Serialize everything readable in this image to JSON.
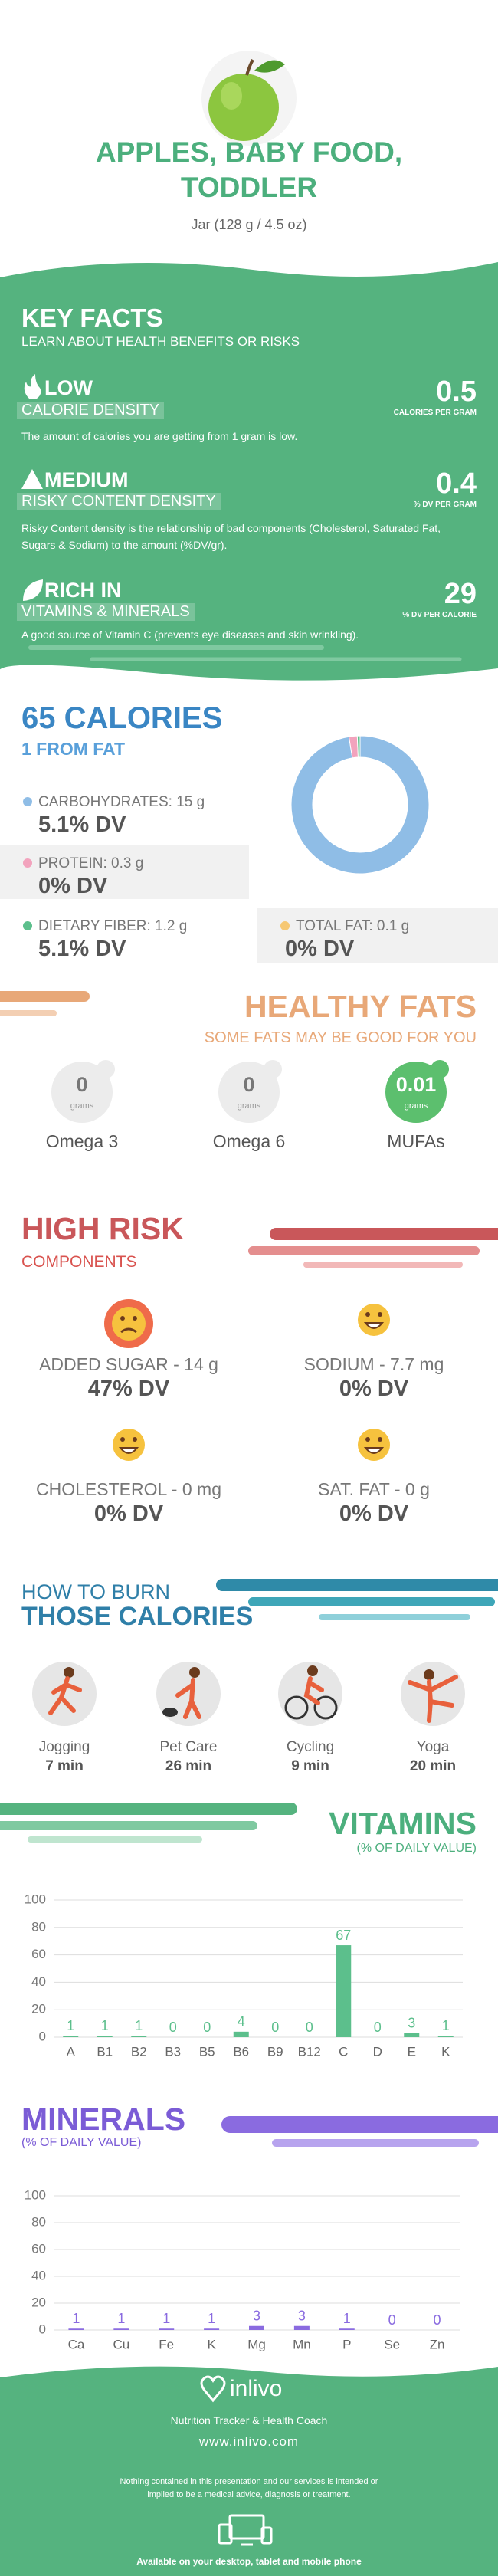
{
  "header": {
    "title": "APPLES, BABY FOOD, TODDLER",
    "subtitle": "Jar (128 g / 4.5 oz)"
  },
  "key_facts": {
    "title": "KEY FACTS",
    "subtitle": "LEARN ABOUT HEALTH BENEFITS OR RISKS",
    "items": [
      {
        "level": "LOW",
        "name": "CALORIE DENSITY",
        "value": 0.5,
        "unit": "CALORIES PER GRAM",
        "description": "The amount of calories you are getting from 1 gram is low."
      },
      {
        "level": "MEDIUM",
        "name": "RISKY CONTENT DENSITY",
        "value": 0.4,
        "unit": "% DV PER GRAM",
        "description": "Risky Content density is the relationship of bad components (Cholesterol, Saturated Fat, Sugars & Sodium) to the amount (%DV/gr)."
      },
      {
        "level": "RICH IN",
        "name": "VITAMINS & MINERALS",
        "value": 29,
        "unit": "% DV PER CALORIE",
        "description": "A good source of Vitamin C (prevents eye diseases and skin wrinkling)."
      }
    ]
  },
  "calories": {
    "title": "65 CALORIES",
    "subtitle": "1 FROM FAT",
    "items": [
      {
        "label": "CARBOHYDRATES: 15 g",
        "dv": "5.1% DV"
      },
      {
        "label": "PROTEIN: 0.3 g",
        "dv": "0% DV"
      },
      {
        "label": "DIETARY FIBER: 1.2 g",
        "dv": "5.1% DV"
      },
      {
        "label": "TOTAL FAT: 0.1 g",
        "dv": "0% DV"
      }
    ]
  },
  "healthy_fats": {
    "title": "HEALTHY FATS",
    "subtitle": "SOME FATS MAY BE GOOD FOR YOU",
    "items": [
      {
        "value": 0,
        "unit": "grams",
        "name": "Omega 3"
      },
      {
        "value": 0,
        "unit": "grams",
        "name": "Omega 6"
      },
      {
        "value": 0.01,
        "unit": "grams",
        "name": "MUFAs"
      }
    ]
  },
  "high_risk": {
    "title": "HIGH RISK",
    "subtitle": "COMPONENTS",
    "items": [
      {
        "label": "ADDED SUGAR - 14 g",
        "dv": "47% DV"
      },
      {
        "label": "SODIUM - 7.7 mg",
        "dv": "0% DV"
      },
      {
        "label": "CHOLESTEROL - 0 mg",
        "dv": "0% DV"
      },
      {
        "label": "SAT. FAT - 0 g",
        "dv": "0% DV"
      }
    ]
  },
  "burn": {
    "title_1": "HOW TO BURN",
    "title_2": "THOSE CALORIES",
    "activities": [
      {
        "name": "Jogging",
        "time": "7 min"
      },
      {
        "name": "Pet Care",
        "time": "26 min"
      },
      {
        "name": "Cycling",
        "time": "9 min"
      },
      {
        "name": "Yoga",
        "time": "20 min"
      }
    ]
  },
  "chart_data": [
    {
      "type": "pie",
      "values": [
        15,
        0.3,
        0.1
      ],
      "colors": [
        "#8fbde6",
        "#f2a3bd",
        "#5cbf8c"
      ]
    },
    {
      "type": "bar",
      "title": "VITAMINS",
      "subtitle": "(% OF DAILY VALUE)",
      "categories": [
        "A",
        "B1",
        "B2",
        "B3",
        "B5",
        "B6",
        "B9",
        "B12",
        "C",
        "D",
        "E",
        "K"
      ],
      "values": [
        1,
        1,
        1,
        0,
        0,
        4,
        0,
        0,
        67,
        0,
        3,
        1
      ],
      "color": "#5cbf8c",
      "ylim": [
        0,
        100
      ],
      "yticks": [
        0,
        20,
        40,
        60,
        80,
        100
      ],
      "grid": true
    },
    {
      "type": "bar",
      "title": "MINERALS",
      "subtitle": "(% OF DAILY VALUE)",
      "categories": [
        "Ca",
        "Cu",
        "Fe",
        "K",
        "Mg",
        "Mn",
        "P",
        "Se",
        "Zn"
      ],
      "values": [
        1,
        1,
        1,
        1,
        3,
        3,
        1,
        0,
        0
      ],
      "color": "#8a6be0",
      "ylim": [
        0,
        100
      ],
      "yticks": [
        0,
        20,
        40,
        60,
        80,
        100
      ],
      "grid": true
    }
  ],
  "footer": {
    "brand": "inlivo",
    "tagline": "Nutrition Tracker & Health Coach",
    "url": "www.inlivo.com",
    "disclaimer": "Nothing contained in this presentation and our services is intended or implied to be a medical advice, diagnosis or treatment.",
    "devices": "Available on your desktop, tablet and mobile phone"
  }
}
